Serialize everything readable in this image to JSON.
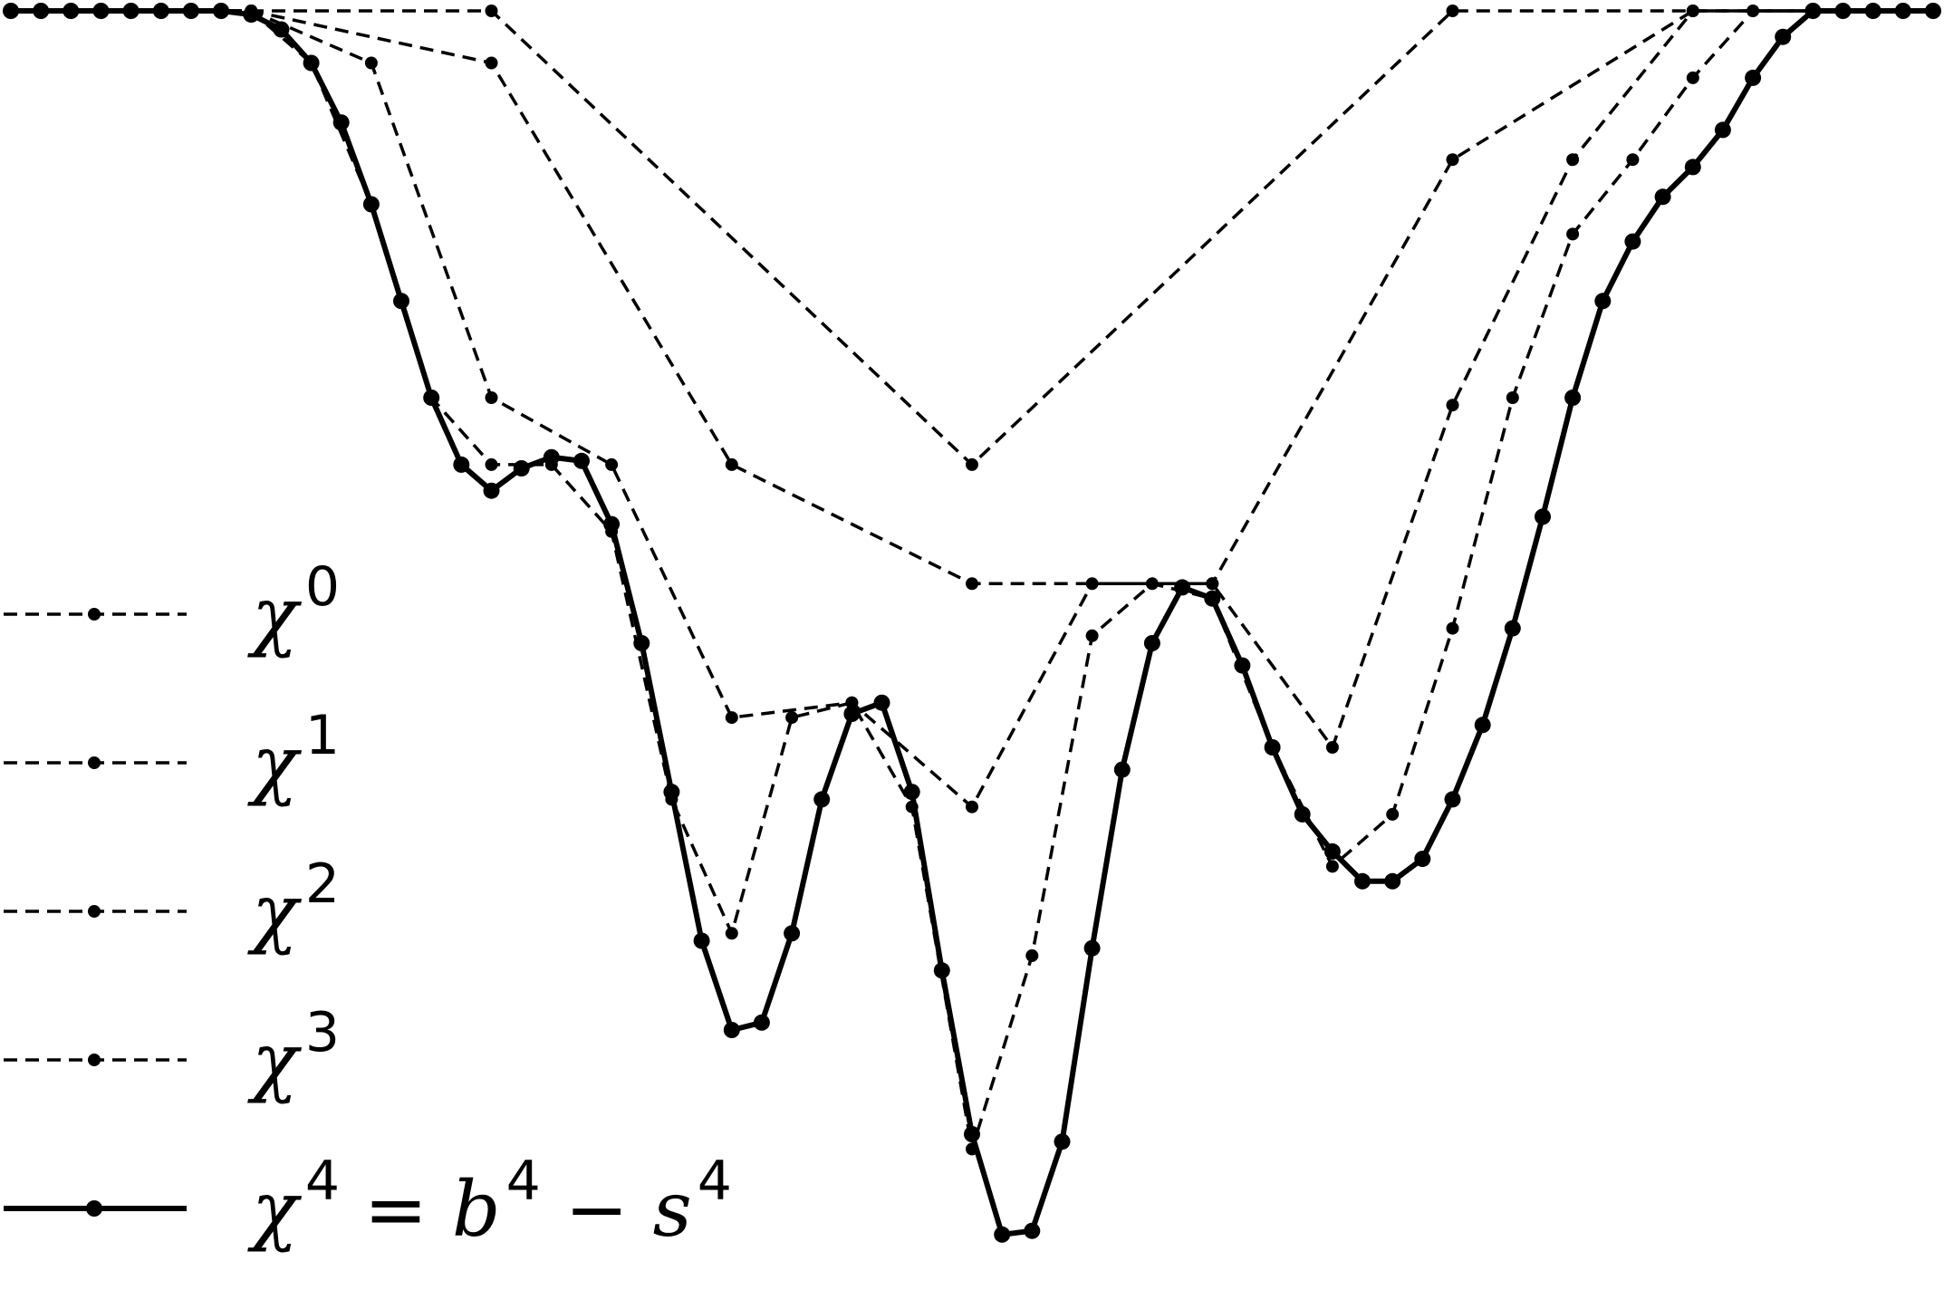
{
  "chart_data": {
    "type": "line",
    "title": "",
    "xlabel": "",
    "ylabel": "",
    "xlim": [
      0,
      64
    ],
    "ylim": [
      -17,
      0
    ],
    "grid": false,
    "axes_visible": false,
    "legend_placement": "lower-left",
    "colors": {
      "line": "#000000",
      "background": "#ffffff"
    },
    "series": [
      {
        "name": "χ0",
        "legend": {
          "base": "χ",
          "sup": "0",
          "rest": ""
        },
        "style": "dashed",
        "x": [
          0,
          16,
          32,
          48,
          64
        ],
        "y": [
          0,
          0,
          -6.1,
          0,
          0
        ]
      },
      {
        "name": "χ1",
        "legend": {
          "base": "χ",
          "sup": "1",
          "rest": ""
        },
        "style": "dashed",
        "x": [
          0,
          8,
          16,
          24,
          32,
          40,
          48,
          56,
          64
        ],
        "y": [
          0,
          0,
          -0.7,
          -6.1,
          -7.7,
          -7.7,
          -2.0,
          0,
          0
        ]
      },
      {
        "name": "χ2",
        "legend": {
          "base": "χ",
          "sup": "2",
          "rest": ""
        },
        "style": "dashed",
        "x": [
          0,
          4,
          8,
          12,
          16,
          20,
          24,
          28,
          32,
          36,
          40,
          44,
          48,
          52,
          56,
          60,
          64
        ],
        "y": [
          0,
          0,
          0,
          -0.7,
          -5.2,
          -6.1,
          -9.5,
          -9.3,
          -10.7,
          -7.7,
          -7.7,
          -9.9,
          -5.3,
          -2.0,
          0,
          0,
          0
        ]
      },
      {
        "name": "χ3",
        "legend": {
          "base": "χ",
          "sup": "3",
          "rest": ""
        },
        "style": "dashed",
        "x": [
          0,
          2,
          4,
          6,
          8,
          10,
          12,
          14,
          16,
          18,
          20,
          22,
          24,
          26,
          28,
          30,
          32,
          34,
          36,
          38,
          40,
          42,
          44,
          46,
          48,
          50,
          52,
          54,
          56,
          58,
          60,
          62,
          64
        ],
        "y": [
          0,
          0,
          0,
          0,
          0,
          -0.7,
          -2.6,
          -5.2,
          -6.1,
          -6.1,
          -7.0,
          -10.6,
          -12.4,
          -9.5,
          -9.3,
          -10.7,
          -15.3,
          -12.7,
          -8.4,
          -7.7,
          -7.9,
          -9.9,
          -11.5,
          -10.8,
          -8.3,
          -5.2,
          -3.0,
          -2.0,
          -0.9,
          0,
          0,
          0,
          0
        ]
      },
      {
        "name": "χ4 = b4 − s4",
        "legend": {
          "base": "χ",
          "sup": "4",
          "rest": " = b4 − s4"
        },
        "style": "solid",
        "x": [
          0,
          1,
          2,
          3,
          4,
          5,
          6,
          7,
          8,
          9,
          10,
          11,
          12,
          13,
          14,
          15,
          16,
          17,
          18,
          19,
          20,
          21,
          22,
          23,
          24,
          25,
          26,
          27,
          28,
          29,
          30,
          31,
          32,
          33,
          34,
          35,
          36,
          37,
          38,
          39,
          40,
          41,
          42,
          43,
          44,
          45,
          46,
          47,
          48,
          49,
          50,
          51,
          52,
          53,
          54,
          55,
          56,
          57,
          58,
          59,
          60,
          61,
          62,
          63,
          64
        ],
        "y": [
          0,
          0,
          0,
          0,
          0,
          0,
          0,
          0,
          -0.05,
          -0.25,
          -0.7,
          -1.5,
          -2.6,
          -3.9,
          -5.2,
          -6.1,
          -6.45,
          -6.15,
          -6.0,
          -6.05,
          -6.9,
          -8.5,
          -10.5,
          -12.5,
          -13.7,
          -13.6,
          -12.4,
          -10.6,
          -9.45,
          -9.3,
          -10.5,
          -12.9,
          -15.1,
          -16.45,
          -16.4,
          -15.2,
          -12.6,
          -10.2,
          -8.5,
          -7.75,
          -7.9,
          -8.8,
          -9.9,
          -10.8,
          -11.3,
          -11.7,
          -11.7,
          -11.4,
          -10.6,
          -9.6,
          -8.3,
          -6.8,
          -5.2,
          -3.9,
          -3.1,
          -2.5,
          -2.1,
          -1.6,
          -0.9,
          -0.35,
          0,
          0,
          0,
          0,
          0
        ]
      }
    ]
  }
}
